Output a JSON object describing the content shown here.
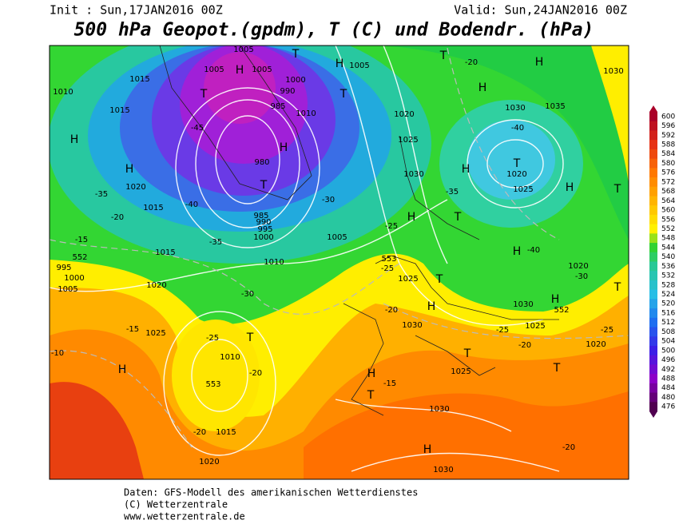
{
  "header": {
    "init": "Init : Sun,17JAN2016 00Z",
    "valid": "Valid: Sun,24JAN2016 00Z",
    "title": "500 hPa Geopot.(gpdm), T (C) und Bodendr. (hPa)"
  },
  "colorbar": {
    "ticks": [
      600,
      596,
      592,
      588,
      584,
      580,
      576,
      572,
      568,
      564,
      560,
      556,
      552,
      548,
      544,
      540,
      536,
      532,
      528,
      524,
      520,
      516,
      512,
      508,
      504,
      500,
      496,
      492,
      488,
      484,
      480,
      476
    ]
  },
  "map_labels": [
    "H",
    "T",
    "1005",
    "1005",
    "1005",
    "1000",
    "990",
    "985",
    "1010",
    "T",
    "-45",
    "-40",
    "H",
    "1015",
    "1010",
    "1015",
    "H",
    "1020",
    "1015",
    "-35",
    "-20",
    "-15",
    "552",
    "995",
    "1000",
    "1005",
    "T",
    "980",
    "985",
    "990",
    "995",
    "1000",
    "-35",
    "-30",
    "-30",
    "1005",
    "1010",
    "1015",
    "1020",
    "H",
    "1005",
    "T",
    "H",
    "T",
    "-20",
    "H",
    "H",
    "1030",
    "1035",
    "1030",
    "-40",
    "T",
    "1020",
    "1025",
    "H",
    "H",
    "-35",
    "1030",
    "1025",
    "1020",
    "H",
    "T",
    "-25",
    "H",
    "-40",
    "1020",
    "-30",
    "T",
    "T",
    "1025",
    "-25",
    "H",
    "-20",
    "1030",
    "T",
    "1025",
    "1030",
    "1025",
    "-25",
    "-20",
    "T",
    "1020",
    "-25",
    "T",
    "H",
    "H",
    "-15",
    "T",
    "1030",
    "H",
    "1030",
    "-20",
    "T",
    "-25",
    "1010",
    "-20",
    "1025",
    "-15",
    "H",
    "-10",
    "-20",
    "1015",
    "1020",
    "553",
    "552",
    "553"
  ],
  "footer": [
    "Daten: GFS-Modell des amerikanischen Wetterdienstes",
    "(C) Wetterzentrale",
    "www.wetterzentrale.de"
  ]
}
